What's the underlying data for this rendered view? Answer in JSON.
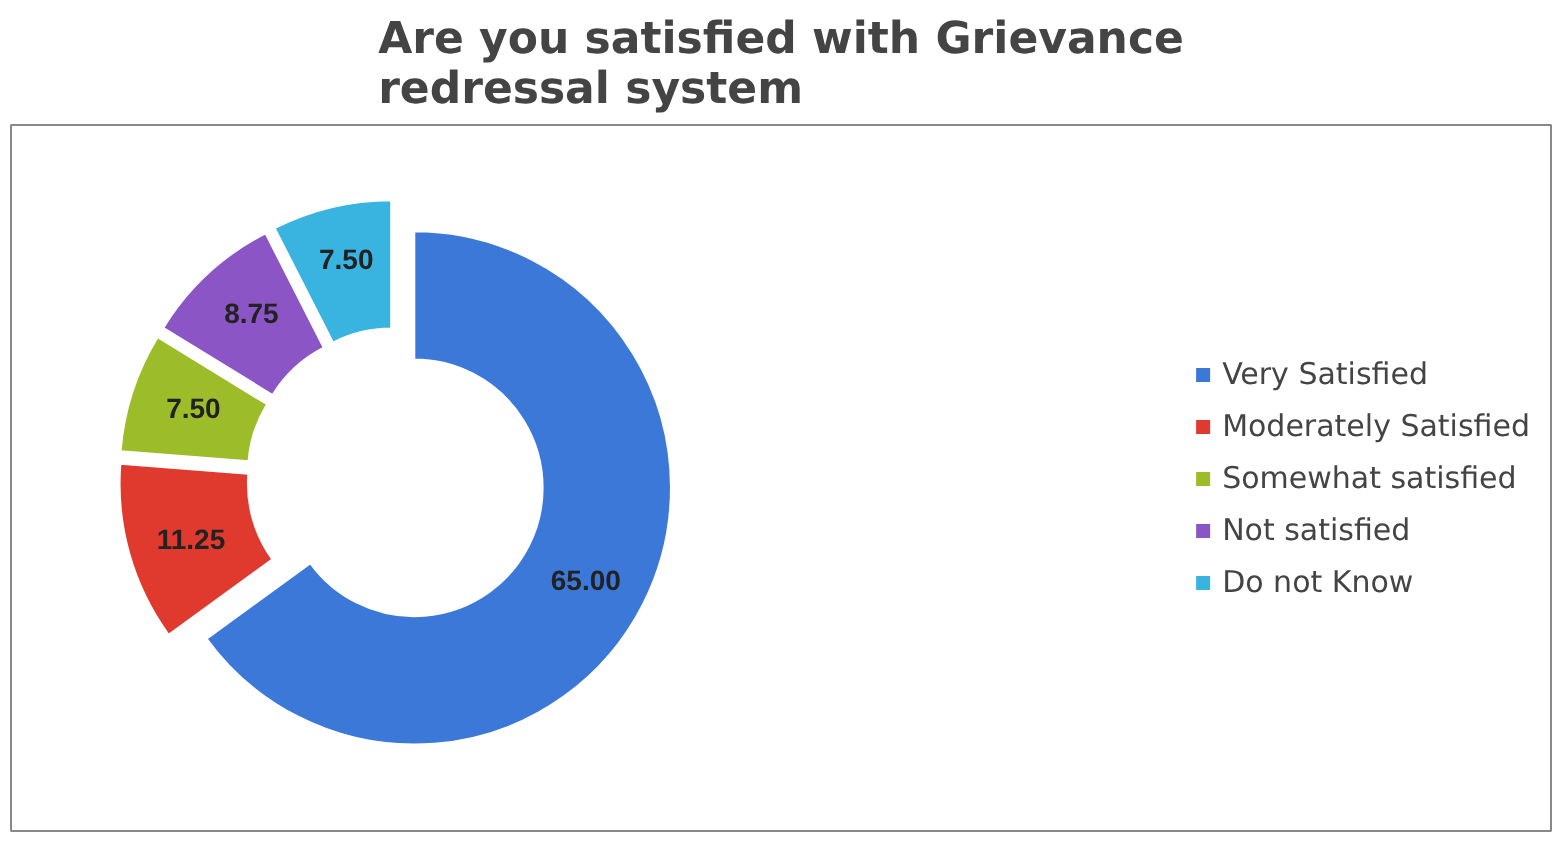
{
  "chart_data": {
    "type": "donut",
    "title": "Are you satisfied with Grievance redressal system",
    "categories": [
      "Very Satisfied",
      "Moderately Satisfied",
      "Somewhat satisfied",
      "Not satisfied",
      "Do not Know"
    ],
    "values": [
      65,
      11.25,
      7.5,
      8.75,
      7.5
    ],
    "value_labels": [
      "65.00",
      "11.25",
      "7.50",
      "8.75",
      "7.50"
    ],
    "colors": [
      "#3b78d8",
      "#e03a2f",
      "#9cbc2a",
      "#8c55c6",
      "#39b3e0"
    ],
    "legend": "right"
  }
}
